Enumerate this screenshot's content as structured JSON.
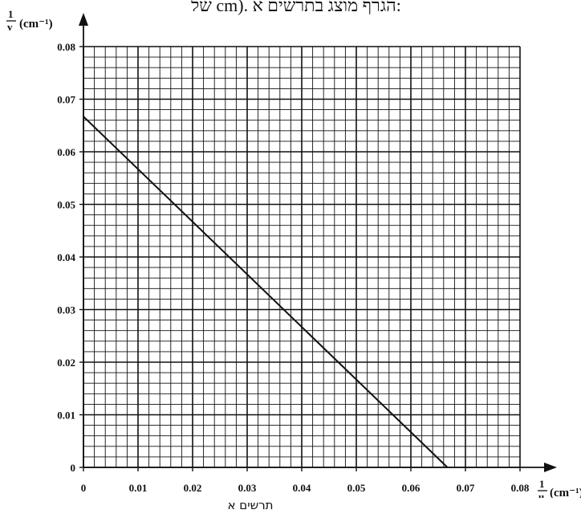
{
  "header": {
    "text": "של cm). הגרף מוצג בתרשים א:"
  },
  "figure": {
    "caption": "תרשים א"
  },
  "chart_data": {
    "type": "line",
    "xlabel": {
      "numerator": "1",
      "denominator": "u",
      "unit": "(cm⁻¹)"
    },
    "ylabel": {
      "numerator": "1",
      "denominator": "v",
      "unit": "(cm⁻¹)"
    },
    "xlim": [
      0,
      0.08
    ],
    "ylim": [
      0,
      0.08
    ],
    "x_ticks": [
      "0",
      "0.01",
      "0.02",
      "0.03",
      "0.04",
      "0.05",
      "0.06",
      "0.07",
      "0.08"
    ],
    "y_ticks": [
      "0",
      "0.01",
      "0.02",
      "0.03",
      "0.04",
      "0.05",
      "0.06",
      "0.07",
      "0.08"
    ],
    "grid": {
      "major_step": 0.01,
      "minor_step": 0.002
    },
    "series": [
      {
        "x": [
          0,
          0.0667
        ],
        "y": [
          0.0667,
          0
        ]
      }
    ]
  }
}
